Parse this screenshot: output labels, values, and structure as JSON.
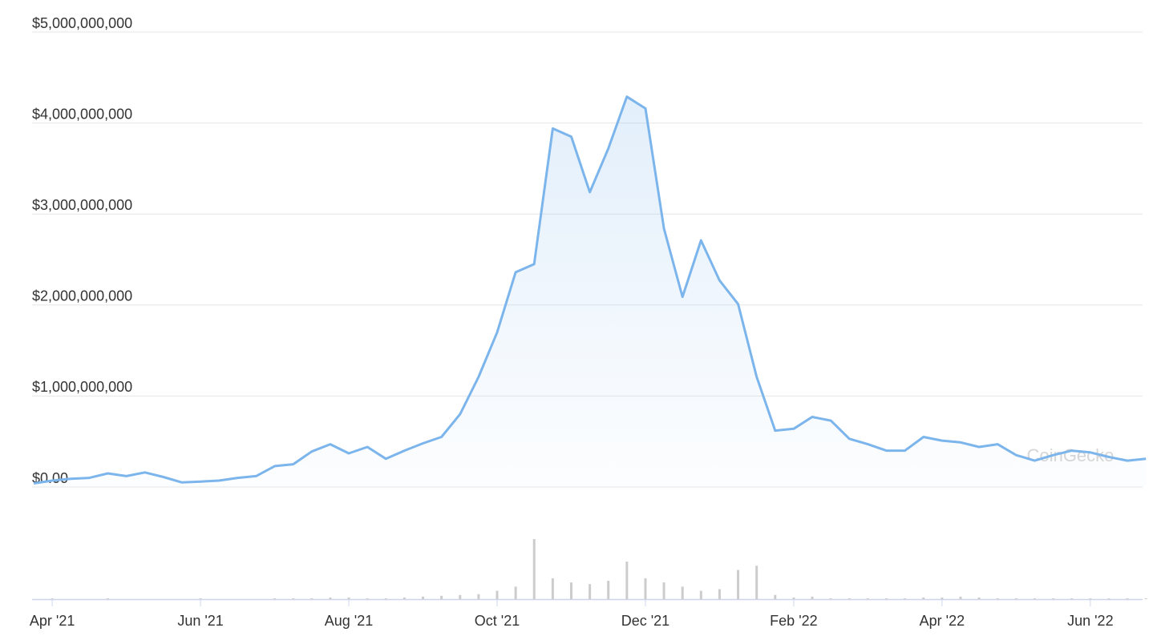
{
  "chart_data": {
    "type": "area",
    "watermark": "CoinGecko",
    "categories": [
      null,
      "Apr '21",
      null,
      null,
      null,
      null,
      null,
      null,
      null,
      "Jun '21",
      null,
      null,
      null,
      null,
      null,
      null,
      null,
      "Aug '21",
      null,
      null,
      null,
      null,
      null,
      null,
      null,
      "Oct '21",
      null,
      null,
      null,
      null,
      null,
      null,
      null,
      "Dec '21",
      null,
      null,
      null,
      null,
      null,
      null,
      null,
      "Feb '22",
      null,
      null,
      null,
      null,
      null,
      null,
      null,
      "Apr '22",
      null,
      null,
      null,
      null,
      null,
      null,
      null,
      "Jun '22",
      null,
      null,
      null
    ],
    "series": [
      {
        "color": "#7cb5ec",
        "values": [
          40000000,
          70000000,
          90000000,
          100000000,
          150000000,
          120000000,
          160000000,
          110000000,
          50000000,
          60000000,
          70000000,
          100000000,
          120000000,
          230000000,
          250000000,
          390000000,
          470000000,
          370000000,
          440000000,
          310000000,
          400000000,
          480000000,
          550000000,
          800000000,
          1210000000,
          1700000000,
          2360000000,
          2450000000,
          3940000000,
          3850000000,
          3240000000,
          3720000000,
          4290000000,
          4160000000,
          2840000000,
          2090000000,
          2710000000,
          2270000000,
          2010000000,
          1210000000,
          620000000,
          640000000,
          770000000,
          730000000,
          530000000,
          470000000,
          400000000,
          400000000,
          550000000,
          510000000,
          490000000,
          440000000,
          470000000,
          350000000,
          290000000,
          350000000,
          400000000,
          380000000,
          330000000,
          290000000,
          310000000
        ]
      }
    ],
    "volume": {
      "color": "#cccccc",
      "values": [
        0,
        1,
        0,
        0,
        1,
        0,
        0,
        0,
        0,
        1,
        0,
        0,
        0,
        1,
        1,
        1,
        2,
        2,
        1,
        1,
        2,
        3,
        4,
        5,
        6,
        10,
        15,
        72,
        25,
        20,
        18,
        22,
        45,
        25,
        20,
        15,
        10,
        12,
        35,
        40,
        5,
        2,
        3,
        1,
        1,
        1,
        1,
        1,
        2,
        2,
        3,
        2,
        1,
        1,
        1,
        1,
        1,
        1,
        1,
        1,
        1
      ]
    },
    "ylim": [
      0,
      5000000000
    ],
    "yticks": [
      {
        "value": 0,
        "label": "$0.00"
      },
      {
        "value": 1000000000,
        "label": "$1,000,000,000"
      },
      {
        "value": 2000000000,
        "label": "$2,000,000,000"
      },
      {
        "value": 3000000000,
        "label": "$3,000,000,000"
      },
      {
        "value": 4000000000,
        "label": "$4,000,000,000"
      },
      {
        "value": 5000000000,
        "label": "$5,000,000,000"
      }
    ],
    "grid": true
  }
}
